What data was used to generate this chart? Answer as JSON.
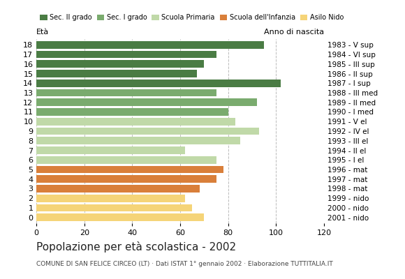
{
  "ages": [
    18,
    17,
    16,
    15,
    14,
    13,
    12,
    11,
    10,
    9,
    8,
    7,
    6,
    5,
    4,
    3,
    2,
    1,
    0
  ],
  "values": [
    95,
    75,
    70,
    67,
    102,
    75,
    92,
    80,
    83,
    93,
    85,
    62,
    75,
    78,
    75,
    68,
    62,
    65,
    70
  ],
  "colors": [
    "#4a7c44",
    "#4a7c44",
    "#4a7c44",
    "#4a7c44",
    "#4a7c44",
    "#7aab6e",
    "#7aab6e",
    "#7aab6e",
    "#c0d9a8",
    "#c0d9a8",
    "#c0d9a8",
    "#c0d9a8",
    "#c0d9a8",
    "#d97f3a",
    "#d97f3a",
    "#d97f3a",
    "#f5d478",
    "#f5d478",
    "#f5d478"
  ],
  "right_labels": [
    "1983 - V sup",
    "1984 - VI sup",
    "1985 - III sup",
    "1986 - II sup",
    "1987 - I sup",
    "1988 - III med",
    "1989 - II med",
    "1990 - I med",
    "1991 - V el",
    "1992 - IV el",
    "1993 - III el",
    "1994 - II el",
    "1995 - I el",
    "1996 - mat",
    "1997 - mat",
    "1998 - mat",
    "1999 - nido",
    "2000 - nido",
    "2001 - nido"
  ],
  "legend_labels": [
    "Sec. II grado",
    "Sec. I grado",
    "Scuola Primaria",
    "Scuola dell'Infanzia",
    "Asilo Nido"
  ],
  "legend_colors": [
    "#4a7c44",
    "#7aab6e",
    "#c0d9a8",
    "#d97f3a",
    "#f5d478"
  ],
  "label_eta": "Età",
  "label_anno": "Anno di nascita",
  "title": "Popolazione per età scolastica - 2002",
  "subtitle": "COMUNE DI SAN FELICE CIRCEO (LT) · Dati ISTAT 1° gennaio 2002 · Elaborazione TUTTITALIA.IT",
  "xlim": [
    0,
    120
  ],
  "xticks": [
    0,
    20,
    40,
    60,
    80,
    100,
    120
  ],
  "bar_height": 0.78,
  "background_color": "#ffffff",
  "grid_color": "#bbbbbb"
}
